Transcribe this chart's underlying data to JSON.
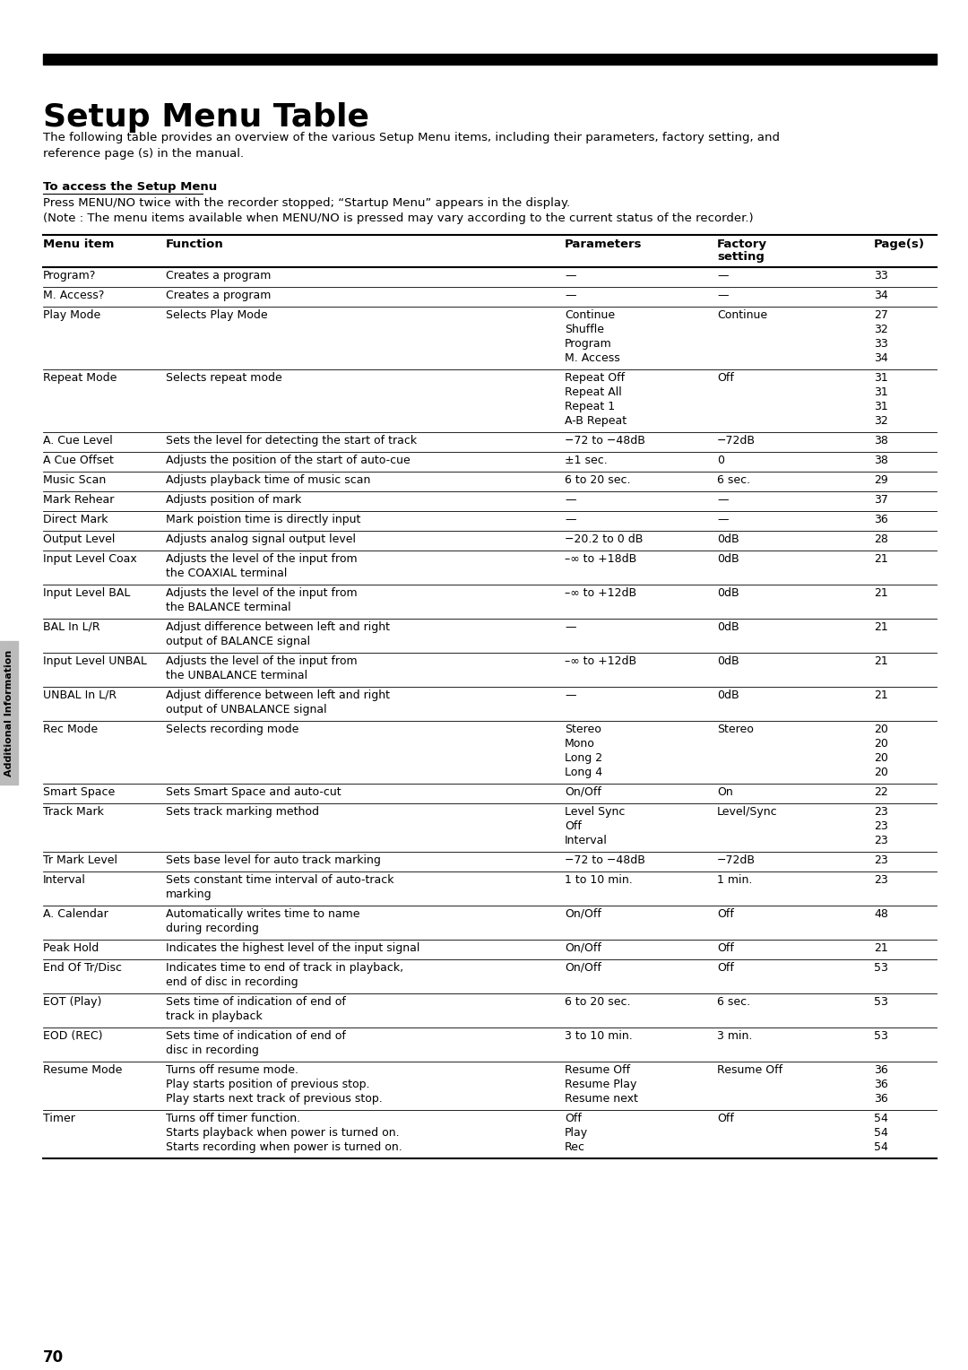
{
  "title": "Setup Menu Table",
  "page_number": "70",
  "intro_text": "The following table provides an overview of the various Setup Menu items, including their parameters, factory setting, and\nreference page (s) in the manual.",
  "access_heading": "To access the Setup Menu",
  "access_line1": "Press MENU/NO twice with the recorder stopped; “Startup Menu” appears in the display.",
  "access_line2": "(Note : The menu items available when MENU/NO is pressed may vary according to the current status of the recorder.)",
  "col_headers": [
    "Menu item",
    "Function",
    "Parameters",
    "Factory",
    "setting",
    "Page(s)"
  ],
  "side_label": "Additional Information",
  "rows": [
    {
      "item": "Program?",
      "function": [
        "Creates a program"
      ],
      "params": [
        "—"
      ],
      "factory": [
        "—"
      ],
      "pages": [
        "33"
      ],
      "sep": true
    },
    {
      "item": "M. Access?",
      "function": [
        "Creates a program"
      ],
      "params": [
        "—"
      ],
      "factory": [
        "—"
      ],
      "pages": [
        "34"
      ],
      "sep": true
    },
    {
      "item": "Play Mode",
      "function": [
        "Selects Play Mode"
      ],
      "params": [
        "Continue",
        "Shuffle",
        "Program",
        "M. Access"
      ],
      "factory": [
        "Continue",
        "",
        "",
        ""
      ],
      "pages": [
        "27",
        "32",
        "33",
        "34"
      ],
      "sep": true
    },
    {
      "item": "Repeat Mode",
      "function": [
        "Selects repeat mode"
      ],
      "params": [
        "Repeat Off",
        "Repeat All",
        "Repeat 1",
        "A-B Repeat"
      ],
      "factory": [
        "Off",
        "",
        "",
        ""
      ],
      "pages": [
        "31",
        "31",
        "31",
        "32"
      ],
      "sep": true
    },
    {
      "item": "A. Cue Level",
      "function": [
        "Sets the level for detecting the start of track"
      ],
      "params": [
        "−72 to −48dB"
      ],
      "factory": [
        "−72dB"
      ],
      "pages": [
        "38"
      ],
      "sep": true
    },
    {
      "item": "A Cue Offset",
      "function": [
        "Adjusts the position of the start of auto-cue"
      ],
      "params": [
        "±1 sec."
      ],
      "factory": [
        "0"
      ],
      "pages": [
        "38"
      ],
      "sep": true
    },
    {
      "item": "Music Scan",
      "function": [
        "Adjusts playback time of music scan"
      ],
      "params": [
        "6 to 20 sec."
      ],
      "factory": [
        "6 sec."
      ],
      "pages": [
        "29"
      ],
      "sep": true
    },
    {
      "item": "Mark Rehear",
      "function": [
        "Adjusts position of mark"
      ],
      "params": [
        "—"
      ],
      "factory": [
        "—"
      ],
      "pages": [
        "37"
      ],
      "sep": true
    },
    {
      "item": "Direct Mark",
      "function": [
        "Mark poistion time is directly input"
      ],
      "params": [
        "—"
      ],
      "factory": [
        "—"
      ],
      "pages": [
        "36"
      ],
      "sep": true
    },
    {
      "item": "Output Level",
      "function": [
        "Adjusts analog signal output level"
      ],
      "params": [
        "−20.2 to 0 dB"
      ],
      "factory": [
        "0dB"
      ],
      "pages": [
        "28"
      ],
      "sep": true
    },
    {
      "item": "Input Level Coax",
      "function": [
        "Adjusts the level of the input from",
        "the COAXIAL terminal"
      ],
      "params": [
        "–∞ to +18dB"
      ],
      "factory": [
        "0dB"
      ],
      "pages": [
        "21"
      ],
      "sep": true
    },
    {
      "item": "Input Level BAL",
      "function": [
        "Adjusts the level of the input from",
        "the BALANCE terminal"
      ],
      "params": [
        "–∞ to +12dB"
      ],
      "factory": [
        "0dB"
      ],
      "pages": [
        "21"
      ],
      "sep": true
    },
    {
      "item": "BAL In L/R",
      "function": [
        "Adjust difference between left and right",
        "output of BALANCE signal"
      ],
      "params": [
        "—"
      ],
      "factory": [
        "0dB"
      ],
      "pages": [
        "21"
      ],
      "sep": true
    },
    {
      "item": "Input Level UNBAL",
      "function": [
        "Adjusts the level of the input from",
        "the UNBALANCE terminal"
      ],
      "params": [
        "–∞ to +12dB"
      ],
      "factory": [
        "0dB"
      ],
      "pages": [
        "21"
      ],
      "sep": true
    },
    {
      "item": "UNBAL In L/R",
      "function": [
        "Adjust difference between left and right",
        "output of UNBALANCE signal"
      ],
      "params": [
        "—"
      ],
      "factory": [
        "0dB"
      ],
      "pages": [
        "21"
      ],
      "sep": true
    },
    {
      "item": "Rec Mode",
      "function": [
        "Selects recording mode"
      ],
      "params": [
        "Stereo",
        "Mono",
        "Long 2",
        "Long 4"
      ],
      "factory": [
        "Stereo",
        "",
        "",
        ""
      ],
      "pages": [
        "20",
        "20",
        "20",
        "20"
      ],
      "sep": true
    },
    {
      "item": "Smart Space",
      "function": [
        "Sets Smart Space and auto-cut"
      ],
      "params": [
        "On/Off"
      ],
      "factory": [
        "On"
      ],
      "pages": [
        "22"
      ],
      "sep": true
    },
    {
      "item": "Track Mark",
      "function": [
        "Sets track marking method"
      ],
      "params": [
        "Level Sync",
        "Off",
        "Interval"
      ],
      "factory": [
        "Level/Sync",
        "",
        ""
      ],
      "pages": [
        "23",
        "23",
        "23"
      ],
      "sep": true
    },
    {
      "item": "Tr Mark Level",
      "function": [
        "Sets base level for auto track marking"
      ],
      "params": [
        "−72 to −48dB"
      ],
      "factory": [
        "−72dB"
      ],
      "pages": [
        "23"
      ],
      "sep": true
    },
    {
      "item": "Interval",
      "function": [
        "Sets constant time interval of auto-track",
        "marking"
      ],
      "params": [
        "1 to 10 min."
      ],
      "factory": [
        "1 min."
      ],
      "pages": [
        "23"
      ],
      "sep": true
    },
    {
      "item": "A. Calendar",
      "function": [
        "Automatically writes time to name",
        "during recording"
      ],
      "params": [
        "On/Off"
      ],
      "factory": [
        "Off"
      ],
      "pages": [
        "48"
      ],
      "sep": true
    },
    {
      "item": "Peak Hold",
      "function": [
        "Indicates the highest level of the input signal"
      ],
      "params": [
        "On/Off"
      ],
      "factory": [
        "Off"
      ],
      "pages": [
        "21"
      ],
      "sep": true
    },
    {
      "item": "End Of Tr/Disc",
      "function": [
        "Indicates time to end of track in playback,",
        "end of disc in recording"
      ],
      "params": [
        "On/Off"
      ],
      "factory": [
        "Off"
      ],
      "pages": [
        "53"
      ],
      "sep": true
    },
    {
      "item": "EOT (Play)",
      "function": [
        "Sets time of indication of end of",
        "track in playback"
      ],
      "params": [
        "6 to 20 sec."
      ],
      "factory": [
        "6 sec."
      ],
      "pages": [
        "53"
      ],
      "sep": true
    },
    {
      "item": "EOD (REC)",
      "function": [
        "Sets time of indication of end of",
        "disc in recording"
      ],
      "params": [
        "3 to 10 min."
      ],
      "factory": [
        "3 min."
      ],
      "pages": [
        "53"
      ],
      "sep": true
    },
    {
      "item": "Resume Mode",
      "function": [
        "Turns off resume mode.",
        "Play starts position of previous stop.",
        "Play starts next track of previous stop."
      ],
      "params": [
        "Resume Off",
        "Resume Play",
        "Resume next"
      ],
      "factory": [
        "Resume Off",
        "",
        ""
      ],
      "pages": [
        "36",
        "36",
        "36"
      ],
      "sep": true
    },
    {
      "item": "Timer",
      "function": [
        "Turns off timer function.",
        "Starts playback when power is turned on.",
        "Starts recording when power is turned on."
      ],
      "params": [
        "Off",
        "Play",
        "Rec"
      ],
      "factory": [
        "Off",
        "",
        ""
      ],
      "pages": [
        "54",
        "54",
        "54"
      ],
      "sep": false
    }
  ]
}
